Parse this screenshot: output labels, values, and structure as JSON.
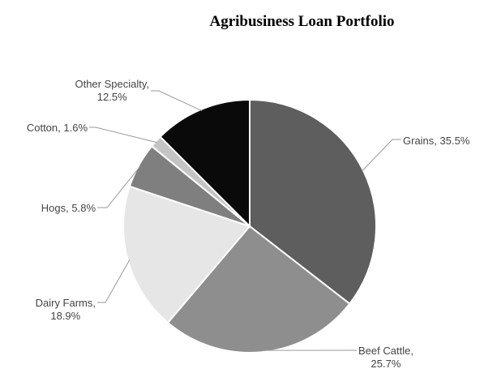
{
  "chart_data": {
    "type": "pie",
    "title": "Agribusiness Loan Portfolio",
    "start_angle_deg": 0,
    "direction": "clockwise",
    "colors": {
      "grains": "#5e5e5e",
      "beef_cattle": "#8e8e8e",
      "dairy_farms": "#e6e6e6",
      "hogs": "#7f7f7f",
      "cotton": "#c4c4c4",
      "other_specialty": "#0a0a0a",
      "border": "#ffffff",
      "label_text": "#444444",
      "leader_line": "#9a9a9a"
    },
    "slices": [
      {
        "id": "grains",
        "name": "Grains",
        "value": 35.5,
        "label_lines": [
          "Grains, 35.5%"
        ]
      },
      {
        "id": "beef_cattle",
        "name": "Beef Cattle",
        "value": 25.7,
        "label_lines": [
          "Beef Cattle,",
          "25.7%"
        ]
      },
      {
        "id": "dairy_farms",
        "name": "Dairy Farms",
        "value": 18.9,
        "label_lines": [
          "Dairy Farms,",
          "18.9%"
        ]
      },
      {
        "id": "hogs",
        "name": "Hogs",
        "value": 5.8,
        "label_lines": [
          "Hogs, 5.8%"
        ]
      },
      {
        "id": "cotton",
        "name": "Cotton",
        "value": 1.6,
        "label_lines": [
          "Cotton, 1.6%"
        ]
      },
      {
        "id": "other_specialty",
        "name": "Other Specialty",
        "value": 12.5,
        "label_lines": [
          "Other Specialty,",
          "12.5%"
        ]
      }
    ]
  }
}
